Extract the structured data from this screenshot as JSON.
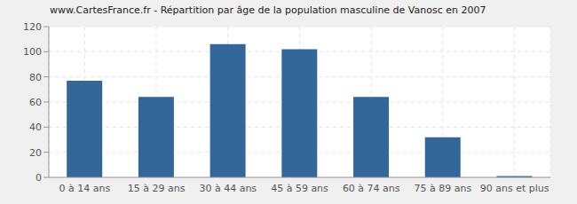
{
  "chart_data": {
    "type": "bar",
    "title": "www.CartesFrance.fr - Répartition par âge de la population masculine de Vanosc en 2007",
    "categories": [
      "0 à 14 ans",
      "15 à 29 ans",
      "30 à 44 ans",
      "45 à 59 ans",
      "60 à 74 ans",
      "75 à 89 ans",
      "90 ans et plus"
    ],
    "values": [
      77,
      64,
      106,
      102,
      64,
      32,
      1
    ],
    "color": "#336699",
    "ylim": [
      0,
      120
    ],
    "yticks": [
      0,
      20,
      40,
      60,
      80,
      100,
      120
    ],
    "grid": true
  }
}
